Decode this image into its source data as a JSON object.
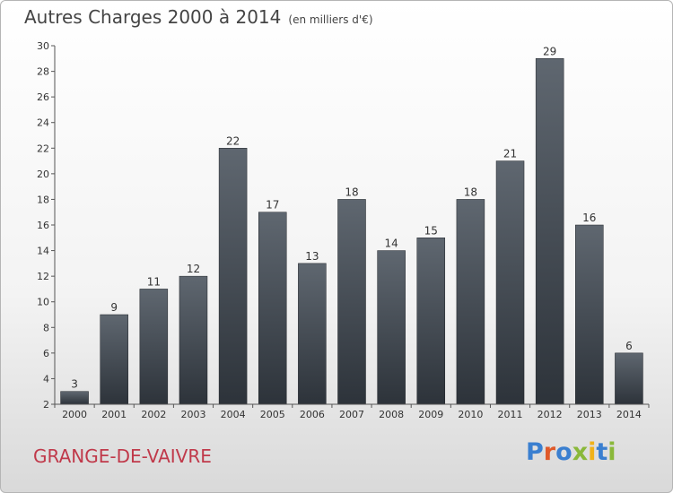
{
  "header": {
    "title": "Autres Charges 2000 à 2014",
    "unit": "(en milliers d'€)"
  },
  "footer": {
    "town": "GRANGE-DE-VAIVRE",
    "logo": "Proxiti"
  },
  "colors": {
    "bar_top": "#5f6770",
    "bar_bottom": "#2d333a",
    "town": "#c0394a",
    "logo_letters": [
      "#3a7fd0",
      "#e05a2a",
      "#3a7fd0",
      "#8ab83a",
      "#f0b21a",
      "#3a7fd0",
      "#8ab83a"
    ]
  },
  "chart_data": {
    "type": "bar",
    "title": "Autres Charges 2000 à 2014",
    "subtitle": "(en milliers d'€)",
    "categories": [
      "2000",
      "2001",
      "2002",
      "2003",
      "2004",
      "2005",
      "2006",
      "2007",
      "2008",
      "2009",
      "2010",
      "2011",
      "2012",
      "2013",
      "2014"
    ],
    "values": [
      3,
      9,
      11,
      12,
      22,
      17,
      13,
      18,
      14,
      15,
      18,
      21,
      29,
      16,
      6
    ],
    "ylim": [
      2,
      30
    ],
    "yticks": [
      2,
      4,
      6,
      8,
      10,
      12,
      14,
      16,
      18,
      20,
      22,
      24,
      26,
      28,
      30
    ],
    "xlabel": "",
    "ylabel": "",
    "grid": false,
    "legend": "none"
  }
}
